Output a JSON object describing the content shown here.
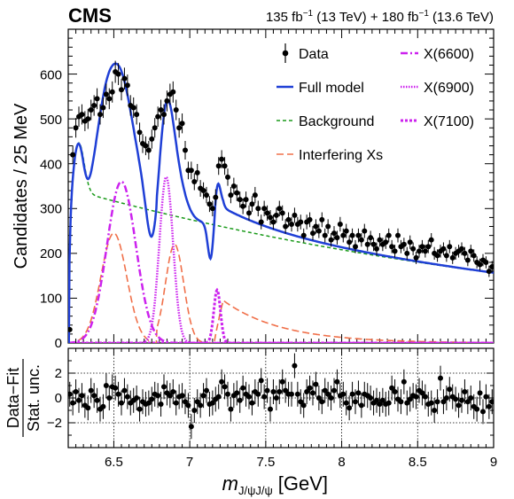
{
  "header": {
    "experiment": "CMS",
    "lumi_1": "135 fb",
    "lumi_1_sup": "−1",
    "lumi_1_energy": " (13 TeV) + 180 fb",
    "lumi_2_sup": "−1",
    "lumi_2_energy": " (13.6 TeV)"
  },
  "legend": {
    "data": "Data",
    "full_model": "Full model",
    "background": "Background",
    "interfering": "Interfering Xs",
    "x6600": "X(6600)",
    "x6900": "X(6900)",
    "x7100": "X(7100)"
  },
  "axes": {
    "ylabel_top": "Candidates / 25 MeV",
    "ylabel_bottom_num": "Data−Fit",
    "ylabel_bottom_den": "Stat. unc.",
    "xlabel_main": "m",
    "xlabel_sub": "J/ψJ/ψ",
    "xlabel_unit": "[GeV]",
    "xticks": [
      "6.5",
      "7",
      "7.5",
      "8",
      "8.5",
      "9"
    ],
    "yticks_top": [
      "0",
      "100",
      "200",
      "300",
      "400",
      "500",
      "600"
    ],
    "yticks_bottom": [
      "−2",
      "0",
      "2"
    ]
  },
  "colors": {
    "data": "#000000",
    "full_model": "#1f3fd6",
    "background": "#1a9a1a",
    "interfering": "#f0704a",
    "signal": "#cc22ee"
  },
  "chart_data": [
    {
      "type": "scatter",
      "panel": "main",
      "xlim": [
        6.2,
        9.0
      ],
      "ylim": [
        0,
        700
      ],
      "data_points": {
        "x": [
          6.21,
          6.23,
          6.25,
          6.27,
          6.29,
          6.31,
          6.33,
          6.35,
          6.37,
          6.39,
          6.41,
          6.43,
          6.45,
          6.47,
          6.49,
          6.51,
          6.53,
          6.55,
          6.57,
          6.59,
          6.61,
          6.63,
          6.65,
          6.67,
          6.69,
          6.71,
          6.73,
          6.75,
          6.77,
          6.79,
          6.81,
          6.83,
          6.85,
          6.87,
          6.89,
          6.91,
          6.93,
          6.95,
          6.97,
          6.99,
          7.01,
          7.03,
          7.05,
          7.07,
          7.09,
          7.11,
          7.13,
          7.15,
          7.17,
          7.19,
          7.21,
          7.23,
          7.25,
          7.27,
          7.29,
          7.31,
          7.33,
          7.35,
          7.37,
          7.39,
          7.41,
          7.43,
          7.45,
          7.47,
          7.49,
          7.51,
          7.53,
          7.55,
          7.57,
          7.59,
          7.61,
          7.63,
          7.65,
          7.67,
          7.69,
          7.71,
          7.73,
          7.75,
          7.77,
          7.79,
          7.81,
          7.83,
          7.85,
          7.87,
          7.89,
          7.91,
          7.93,
          7.95,
          7.97,
          7.99,
          8.01,
          8.03,
          8.05,
          8.07,
          8.09,
          8.11,
          8.13,
          8.15,
          8.17,
          8.19,
          8.21,
          8.23,
          8.25,
          8.27,
          8.29,
          8.31,
          8.33,
          8.35,
          8.37,
          8.39,
          8.41,
          8.43,
          8.45,
          8.47,
          8.49,
          8.51,
          8.53,
          8.55,
          8.57,
          8.59,
          8.61,
          8.63,
          8.65,
          8.67,
          8.69,
          8.71,
          8.73,
          8.75,
          8.77,
          8.79,
          8.81,
          8.83,
          8.85,
          8.87,
          8.89,
          8.91,
          8.93,
          8.95,
          8.97,
          8.99
        ],
        "y": [
          30,
          420,
          480,
          505,
          510,
          495,
          500,
          520,
          530,
          545,
          510,
          525,
          555,
          545,
          560,
          605,
          600,
          565,
          590,
          575,
          530,
          525,
          510,
          470,
          445,
          440,
          430,
          455,
          480,
          505,
          520,
          510,
          540,
          555,
          560,
          520,
          480,
          490,
          430,
          385,
          385,
          360,
          380,
          345,
          340,
          330,
          310,
          300,
          325,
          395,
          410,
          395,
          370,
          330,
          350,
          335,
          320,
          305,
          320,
          290,
          310,
          330,
          300,
          270,
          300,
          290,
          280,
          270,
          285,
          300,
          290,
          260,
          275,
          265,
          285,
          265,
          270,
          240,
          270,
          275,
          245,
          260,
          250,
          275,
          240,
          260,
          230,
          245,
          235,
          265,
          240,
          250,
          225,
          240,
          215,
          240,
          230,
          250,
          220,
          235,
          220,
          210,
          230,
          220,
          225,
          240,
          215,
          205,
          240,
          215,
          220,
          200,
          225,
          210,
          190,
          205,
          215,
          205,
          215,
          230,
          200,
          195,
          205,
          210,
          195,
          215,
          190,
          200,
          205,
          210,
          200,
          185,
          205,
          195,
          180,
          175,
          185,
          180,
          160,
          170
        ]
      },
      "series": [
        {
          "name": "Full model"
        },
        {
          "name": "Background"
        },
        {
          "name": "Interfering Xs"
        },
        {
          "name": "X(6600)"
        },
        {
          "name": "X(6900)"
        },
        {
          "name": "X(7100)"
        }
      ]
    },
    {
      "type": "scatter",
      "panel": "pull",
      "xlim": [
        6.2,
        9.0
      ],
      "ylim": [
        -4,
        4
      ],
      "x": [
        6.21,
        6.23,
        6.25,
        6.27,
        6.29,
        6.31,
        6.33,
        6.35,
        6.37,
        6.39,
        6.41,
        6.43,
        6.45,
        6.47,
        6.49,
        6.51,
        6.53,
        6.55,
        6.57,
        6.59,
        6.61,
        6.63,
        6.65,
        6.67,
        6.69,
        6.71,
        6.73,
        6.75,
        6.77,
        6.79,
        6.81,
        6.83,
        6.85,
        6.87,
        6.89,
        6.91,
        6.93,
        6.95,
        6.97,
        6.99,
        7.01,
        7.03,
        7.05,
        7.07,
        7.09,
        7.11,
        7.13,
        7.15,
        7.17,
        7.19,
        7.21,
        7.23,
        7.25,
        7.27,
        7.29,
        7.31,
        7.33,
        7.35,
        7.37,
        7.39,
        7.41,
        7.43,
        7.45,
        7.47,
        7.49,
        7.51,
        7.53,
        7.55,
        7.57,
        7.59,
        7.61,
        7.63,
        7.65,
        7.67,
        7.69,
        7.71,
        7.73,
        7.75,
        7.77,
        7.79,
        7.81,
        7.83,
        7.85,
        7.87,
        7.89,
        7.91,
        7.93,
        7.95,
        7.97,
        7.99,
        8.01,
        8.03,
        8.05,
        8.07,
        8.09,
        8.11,
        8.13,
        8.15,
        8.17,
        8.19,
        8.21,
        8.23,
        8.25,
        8.27,
        8.29,
        8.31,
        8.33,
        8.35,
        8.37,
        8.39,
        8.41,
        8.43,
        8.45,
        8.47,
        8.49,
        8.51,
        8.53,
        8.55,
        8.57,
        8.59,
        8.61,
        8.63,
        8.65,
        8.67,
        8.69,
        8.71,
        8.73,
        8.75,
        8.77,
        8.79,
        8.81,
        8.83,
        8.85,
        8.87,
        8.89,
        8.91,
        8.93,
        8.95,
        8.97,
        8.99
      ],
      "y": [
        0.3,
        -0.4,
        0.5,
        -0.2,
        0.2,
        -0.6,
        -0.8,
        0.6,
        0.2,
        -0.2,
        -0.9,
        -0.7,
        1.0,
        0.0,
        0.9,
        0.8,
        0.3,
        -0.4,
        0.6,
        0.1,
        -0.4,
        -0.2,
        0.0,
        -0.9,
        -0.3,
        -0.5,
        -0.4,
        -0.1,
        0.3,
        0.2,
        -0.5,
        0.9,
        0.4,
        0.2,
        0.5,
        -0.4,
        0.1,
        0.2,
        -0.3,
        -0.6,
        -2.3,
        -1.0,
        -0.3,
        -0.6,
        0.2,
        0.6,
        -0.5,
        -0.4,
        -0.1,
        0.1,
        1.3,
        0.9,
        0.3,
        -0.9,
        0.2,
        0.4,
        -0.2,
        0.8,
        0.3,
        0.1,
        -0.4,
        0.5,
        0.3,
        1.4,
        0.1,
        0.6,
        -0.9,
        0.5,
        0.0,
        0.5,
        1.3,
        0.6,
        0.3,
        0.3,
        2.6,
        0.3,
        -0.3,
        -0.6,
        0.5,
        0.8,
        0.4,
        1.1,
        0.0,
        -0.3,
        0.6,
        0.3,
        0.0,
        0.6,
        1.3,
        0.2,
        0.3,
        -0.4,
        -0.8,
        0.3,
        -0.3,
        0.4,
        -0.6,
        0.3,
        0.2,
        0.0,
        -0.4,
        -0.2,
        -0.5,
        -0.2,
        -0.5,
        -0.4,
        0.8,
        0.5,
        -0.1,
        -0.3,
        1.3,
        -0.4,
        -0.1,
        0.2,
        0.1,
        0.6,
        0.4,
        0.1,
        -0.5,
        -0.4,
        -1.0,
        -0.3,
        1.6,
        -0.3,
        0.0,
        0.7,
        0.1,
        -0.1,
        -0.6,
        -0.2,
        0.5,
        -0.3,
        0.0,
        -0.7,
        -0.9,
        0.4,
        -1.1,
        0.1,
        -0.7,
        -0.3
      ]
    }
  ]
}
